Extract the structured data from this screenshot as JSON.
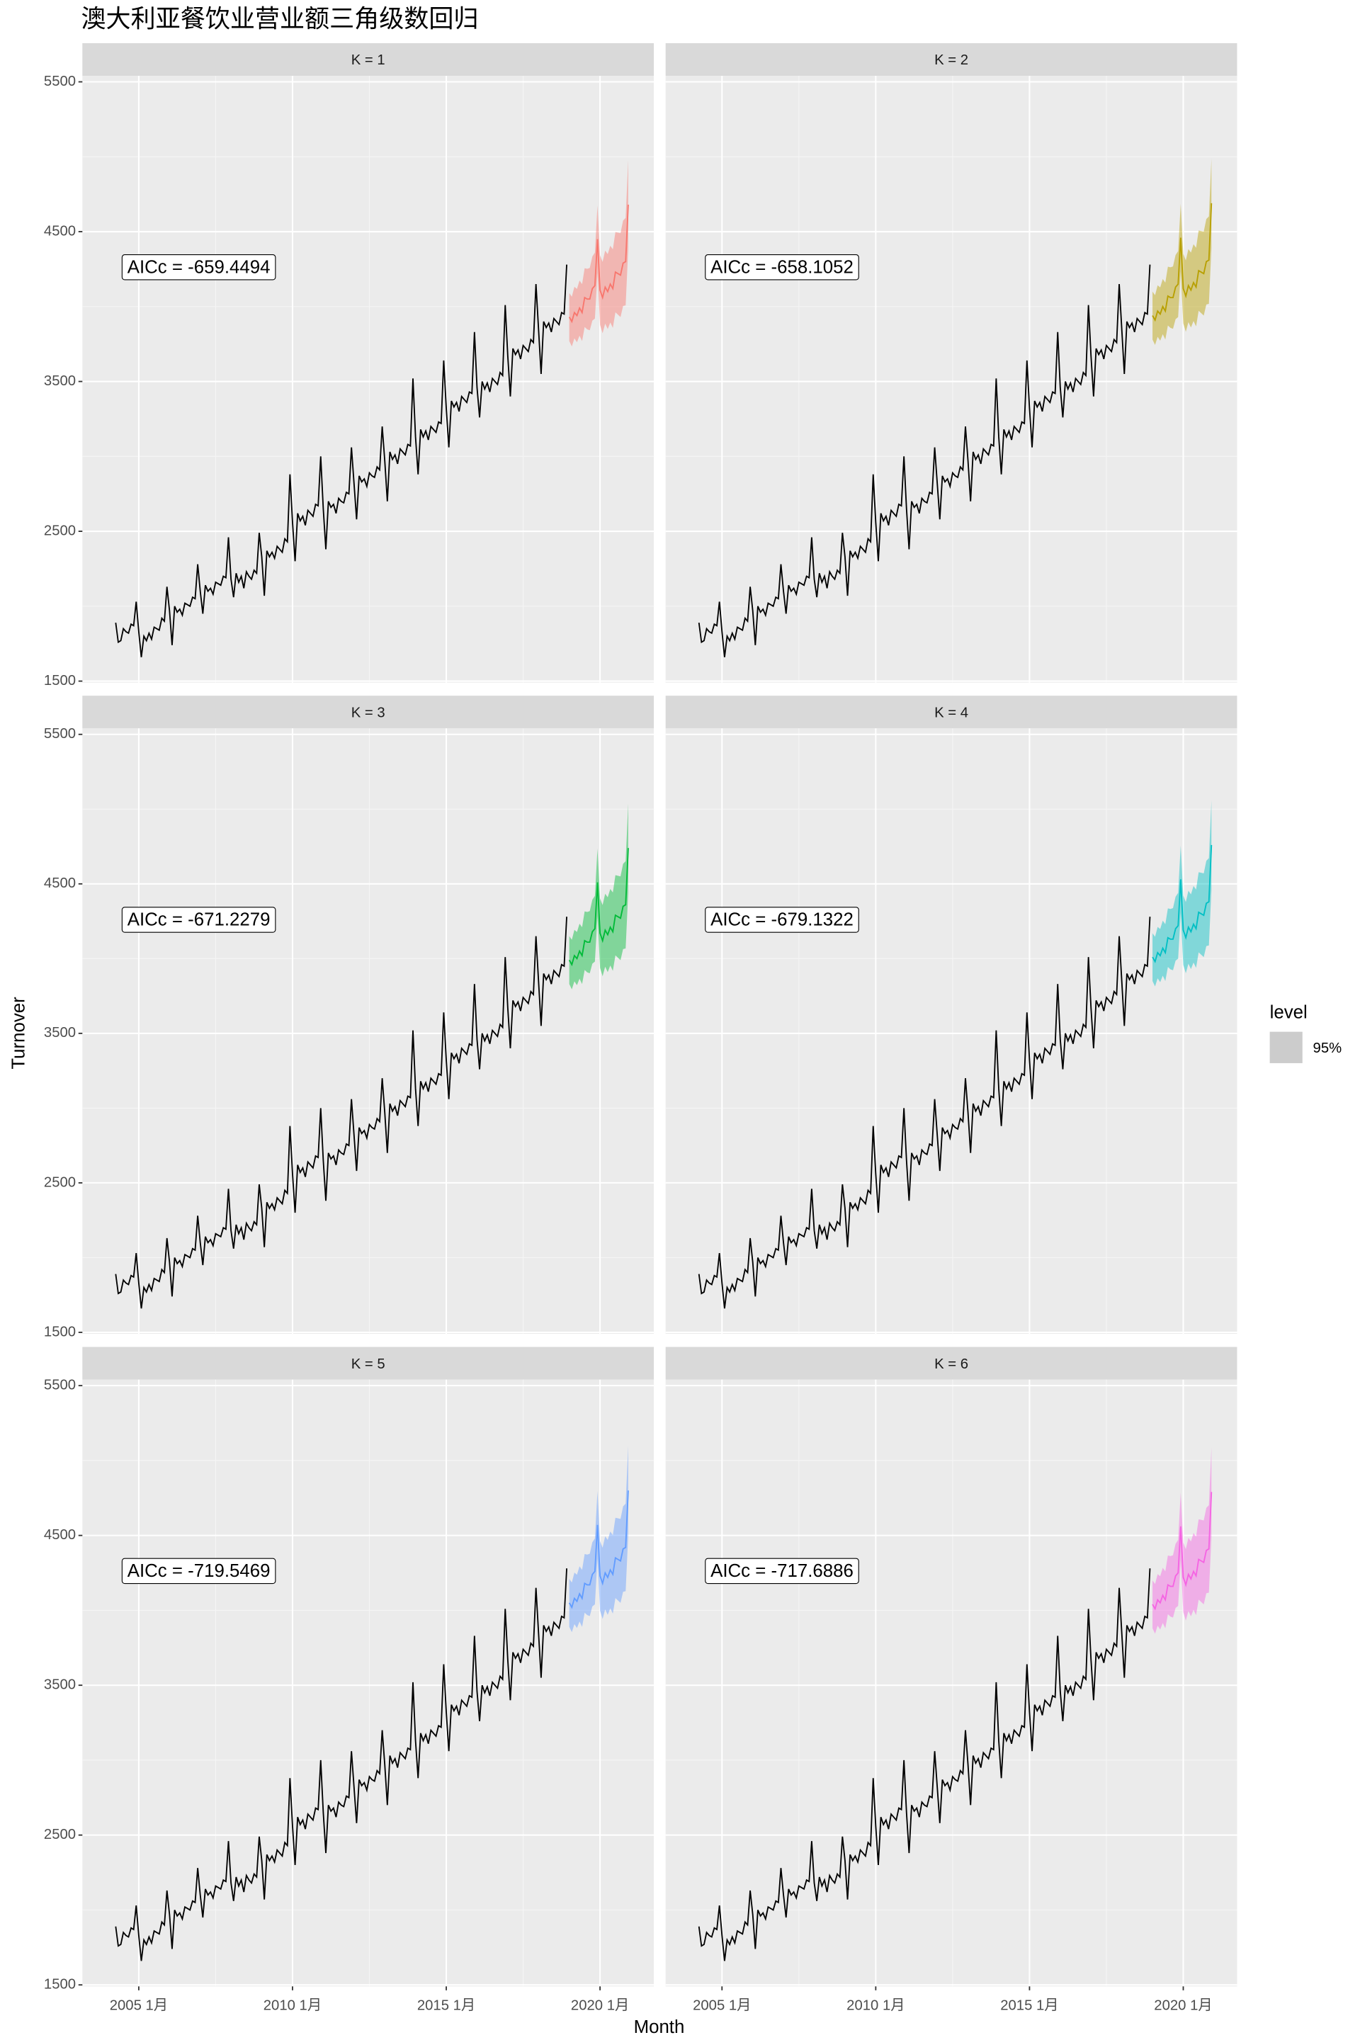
{
  "title": "澳大利亚餐饮业营业额三角级数回归",
  "chart_data": {
    "type": "line",
    "x_label": "Month",
    "y_label": "Turnover",
    "grid": true,
    "color": "#000000",
    "xlim": [
      "2003-03",
      "2021-10"
    ],
    "xticks": [
      {
        "value": "2005-01",
        "label": "2005 1月"
      },
      {
        "value": "2010-01",
        "label": "2010 1月"
      },
      {
        "value": "2015-01",
        "label": "2015 1月"
      },
      {
        "value": "2020-01",
        "label": "2020 1月"
      }
    ],
    "xminor": [
      "2007-07",
      "2012-07",
      "2017-07"
    ],
    "ylim": [
      1490,
      5540
    ],
    "yticks": [
      1500,
      2500,
      3500,
      4500,
      5500
    ],
    "yminor": [
      2000,
      3000,
      4000,
      5000
    ],
    "x": [
      "2004-04",
      "2004-05",
      "2004-06",
      "2004-07",
      "2004-08",
      "2004-09",
      "2004-10",
      "2004-11",
      "2004-12",
      "2005-01",
      "2005-02",
      "2005-03",
      "2005-04",
      "2005-05",
      "2005-06",
      "2005-07",
      "2005-08",
      "2005-09",
      "2005-10",
      "2005-11",
      "2005-12",
      "2006-01",
      "2006-02",
      "2006-03",
      "2006-04",
      "2006-05",
      "2006-06",
      "2006-07",
      "2006-08",
      "2006-09",
      "2006-10",
      "2006-11",
      "2006-12",
      "2007-01",
      "2007-02",
      "2007-03",
      "2007-04",
      "2007-05",
      "2007-06",
      "2007-07",
      "2007-08",
      "2007-09",
      "2007-10",
      "2007-11",
      "2007-12",
      "2008-01",
      "2008-02",
      "2008-03",
      "2008-04",
      "2008-05",
      "2008-06",
      "2008-07",
      "2008-08",
      "2008-09",
      "2008-10",
      "2008-11",
      "2008-12",
      "2009-01",
      "2009-02",
      "2009-03",
      "2009-04",
      "2009-05",
      "2009-06",
      "2009-07",
      "2009-08",
      "2009-09",
      "2009-10",
      "2009-11",
      "2009-12",
      "2010-01",
      "2010-02",
      "2010-03",
      "2010-04",
      "2010-05",
      "2010-06",
      "2010-07",
      "2010-08",
      "2010-09",
      "2010-10",
      "2010-11",
      "2010-12",
      "2011-01",
      "2011-02",
      "2011-03",
      "2011-04",
      "2011-05",
      "2011-06",
      "2011-07",
      "2011-08",
      "2011-09",
      "2011-10",
      "2011-11",
      "2011-12",
      "2012-01",
      "2012-02",
      "2012-03",
      "2012-04",
      "2012-05",
      "2012-06",
      "2012-07",
      "2012-08",
      "2012-09",
      "2012-10",
      "2012-11",
      "2012-12",
      "2013-01",
      "2013-02",
      "2013-03",
      "2013-04",
      "2013-05",
      "2013-06",
      "2013-07",
      "2013-08",
      "2013-09",
      "2013-10",
      "2013-11",
      "2013-12",
      "2014-01",
      "2014-02",
      "2014-03",
      "2014-04",
      "2014-05",
      "2014-06",
      "2014-07",
      "2014-08",
      "2014-09",
      "2014-10",
      "2014-11",
      "2014-12",
      "2015-01",
      "2015-02",
      "2015-03",
      "2015-04",
      "2015-05",
      "2015-06",
      "2015-07",
      "2015-08",
      "2015-09",
      "2015-10",
      "2015-11",
      "2015-12",
      "2016-01",
      "2016-02",
      "2016-03",
      "2016-04",
      "2016-05",
      "2016-06",
      "2016-07",
      "2016-08",
      "2016-09",
      "2016-10",
      "2016-11",
      "2016-12",
      "2017-01",
      "2017-02",
      "2017-03",
      "2017-04",
      "2017-05",
      "2017-06",
      "2017-07",
      "2017-08",
      "2017-09",
      "2017-10",
      "2017-11",
      "2017-12",
      "2018-01",
      "2018-02",
      "2018-03",
      "2018-04",
      "2018-05",
      "2018-06",
      "2018-07",
      "2018-08",
      "2018-09",
      "2018-10",
      "2018-11",
      "2018-12"
    ],
    "values": [
      1890,
      1760,
      1770,
      1850,
      1830,
      1820,
      1880,
      1870,
      2030,
      1830,
      1660,
      1800,
      1770,
      1820,
      1780,
      1860,
      1850,
      1840,
      1920,
      1900,
      2130,
      1970,
      1740,
      2000,
      1960,
      1980,
      1940,
      2020,
      2010,
      2000,
      2060,
      2050,
      2280,
      2100,
      1950,
      2140,
      2100,
      2120,
      2080,
      2160,
      2150,
      2140,
      2200,
      2190,
      2460,
      2180,
      2060,
      2220,
      2160,
      2200,
      2120,
      2230,
      2200,
      2180,
      2240,
      2220,
      2490,
      2330,
      2070,
      2370,
      2330,
      2360,
      2320,
      2400,
      2380,
      2360,
      2450,
      2430,
      2880,
      2560,
      2300,
      2620,
      2570,
      2600,
      2540,
      2640,
      2620,
      2600,
      2680,
      2670,
      3000,
      2650,
      2380,
      2700,
      2660,
      2680,
      2620,
      2720,
      2700,
      2690,
      2760,
      2750,
      3060,
      2820,
      2580,
      2870,
      2830,
      2850,
      2800,
      2890,
      2870,
      2860,
      2930,
      2910,
      3200,
      2970,
      2700,
      3030,
      2980,
      3010,
      2950,
      3050,
      3030,
      3010,
      3080,
      3070,
      3520,
      3130,
      2880,
      3180,
      3130,
      3170,
      3110,
      3200,
      3180,
      3160,
      3230,
      3220,
      3640,
      3320,
      3060,
      3370,
      3330,
      3360,
      3300,
      3400,
      3380,
      3360,
      3430,
      3420,
      3830,
      3460,
      3260,
      3500,
      3450,
      3490,
      3430,
      3520,
      3500,
      3480,
      3560,
      3540,
      4010,
      3670,
      3400,
      3720,
      3680,
      3710,
      3650,
      3740,
      3720,
      3700,
      3780,
      3760,
      4150,
      3850,
      3550,
      3900,
      3860,
      3890,
      3830,
      3920,
      3900,
      3880,
      3960,
      3950,
      4280
    ],
    "forecast_x": [
      "2019-01",
      "2019-02",
      "2019-03",
      "2019-04",
      "2019-05",
      "2019-06",
      "2019-07",
      "2019-08",
      "2019-09",
      "2019-10",
      "2019-11",
      "2019-12",
      "2020-01",
      "2020-02",
      "2020-03",
      "2020-04",
      "2020-05",
      "2020-06",
      "2020-07",
      "2020-08",
      "2020-09",
      "2020-10",
      "2020-11",
      "2020-12"
    ],
    "facets": [
      {
        "label": "K = 1",
        "annotation": "AICc = -659.4494",
        "color": "#F8766D",
        "mean": [
          3930,
          3900,
          3960,
          3940,
          3990,
          3960,
          4060,
          4050,
          4050,
          4120,
          4140,
          4450,
          4110,
          4060,
          4130,
          4100,
          4150,
          4120,
          4230,
          4220,
          4210,
          4290,
          4300,
          4680
        ],
        "lower": [
          3770,
          3734,
          3788,
          3762,
          3806,
          3770,
          3864,
          3848,
          3842,
          3906,
          3920,
          4224,
          3878,
          3822,
          3886,
          3850,
          3894,
          3858,
          3962,
          3946,
          3930,
          4004,
          4008,
          4382
        ],
        "upper": [
          4090,
          4066,
          4132,
          4118,
          4174,
          4150,
          4256,
          4252,
          4258,
          4334,
          4360,
          4676,
          4342,
          4298,
          4374,
          4350,
          4406,
          4382,
          4498,
          4494,
          4490,
          4574,
          4592,
          4978
        ]
      },
      {
        "label": "K = 2",
        "annotation": "AICc = -658.1052",
        "color": "#B79F00",
        "mean": [
          3940,
          3910,
          3970,
          3950,
          4000,
          3970,
          4070,
          4060,
          4060,
          4130,
          4150,
          4460,
          4120,
          4070,
          4140,
          4110,
          4160,
          4130,
          4240,
          4230,
          4220,
          4300,
          4310,
          4690
        ],
        "lower": [
          3780,
          3744,
          3798,
          3772,
          3816,
          3780,
          3874,
          3858,
          3852,
          3916,
          3930,
          4234,
          3888,
          3832,
          3896,
          3860,
          3904,
          3868,
          3972,
          3956,
          3940,
          4014,
          4018,
          4392
        ],
        "upper": [
          4100,
          4076,
          4142,
          4128,
          4184,
          4160,
          4266,
          4262,
          4268,
          4344,
          4370,
          4686,
          4352,
          4308,
          4384,
          4360,
          4416,
          4392,
          4508,
          4504,
          4500,
          4584,
          4602,
          4988
        ]
      },
      {
        "label": "K = 3",
        "annotation": "AICc = -671.2279",
        "color": "#00BA38",
        "mean": [
          3990,
          3960,
          4020,
          4000,
          4050,
          4020,
          4120,
          4110,
          4110,
          4180,
          4200,
          4510,
          4170,
          4120,
          4190,
          4160,
          4210,
          4180,
          4290,
          4280,
          4270,
          4350,
          4360,
          4740
        ],
        "lower": [
          3830,
          3794,
          3848,
          3822,
          3866,
          3830,
          3924,
          3908,
          3902,
          3966,
          3980,
          4284,
          3938,
          3882,
          3946,
          3910,
          3954,
          3918,
          4022,
          4006,
          3990,
          4064,
          4068,
          4442
        ],
        "upper": [
          4150,
          4126,
          4192,
          4178,
          4234,
          4210,
          4316,
          4312,
          4318,
          4394,
          4420,
          4736,
          4402,
          4358,
          4434,
          4410,
          4466,
          4442,
          4558,
          4554,
          4550,
          4634,
          4652,
          5038
        ]
      },
      {
        "label": "K = 4",
        "annotation": "AICc = -679.1322",
        "color": "#00BFC4",
        "mean": [
          4010,
          3980,
          4040,
          4020,
          4070,
          4040,
          4140,
          4130,
          4130,
          4200,
          4220,
          4530,
          4190,
          4140,
          4210,
          4180,
          4230,
          4200,
          4310,
          4300,
          4290,
          4370,
          4380,
          4760
        ],
        "lower": [
          3850,
          3814,
          3868,
          3842,
          3886,
          3850,
          3944,
          3928,
          3922,
          3986,
          4000,
          4304,
          3958,
          3902,
          3966,
          3930,
          3974,
          3938,
          4042,
          4026,
          4010,
          4084,
          4088,
          4462
        ],
        "upper": [
          4170,
          4146,
          4212,
          4198,
          4254,
          4230,
          4336,
          4332,
          4338,
          4414,
          4440,
          4756,
          4422,
          4378,
          4454,
          4430,
          4486,
          4462,
          4578,
          4574,
          4570,
          4654,
          4672,
          5058
        ]
      },
      {
        "label": "K = 5",
        "annotation": "AICc = -719.5469",
        "color": "#619CFF",
        "mean": [
          4050,
          4020,
          4080,
          4060,
          4110,
          4080,
          4180,
          4170,
          4170,
          4240,
          4260,
          4570,
          4230,
          4180,
          4250,
          4220,
          4270,
          4240,
          4350,
          4340,
          4330,
          4410,
          4420,
          4800
        ],
        "lower": [
          3890,
          3854,
          3908,
          3882,
          3926,
          3890,
          3984,
          3968,
          3962,
          4026,
          4040,
          4344,
          3998,
          3942,
          4006,
          3970,
          4014,
          3978,
          4082,
          4066,
          4050,
          4124,
          4128,
          4502
        ],
        "upper": [
          4210,
          4186,
          4252,
          4238,
          4294,
          4270,
          4376,
          4372,
          4378,
          4454,
          4480,
          4796,
          4462,
          4418,
          4494,
          4470,
          4526,
          4502,
          4618,
          4614,
          4610,
          4694,
          4712,
          5098
        ]
      },
      {
        "label": "K = 6",
        "annotation": "AICc = -717.6886",
        "color": "#F564E3",
        "mean": [
          4040,
          4010,
          4070,
          4050,
          4100,
          4070,
          4170,
          4160,
          4160,
          4230,
          4250,
          4560,
          4220,
          4170,
          4240,
          4210,
          4260,
          4230,
          4340,
          4330,
          4320,
          4400,
          4410,
          4790
        ],
        "lower": [
          3880,
          3844,
          3898,
          3872,
          3916,
          3880,
          3974,
          3958,
          3952,
          4016,
          4030,
          4334,
          3988,
          3932,
          3996,
          3960,
          4004,
          3968,
          4072,
          4056,
          4040,
          4114,
          4118,
          4492
        ],
        "upper": [
          4200,
          4176,
          4242,
          4228,
          4284,
          4260,
          4366,
          4362,
          4368,
          4444,
          4470,
          4786,
          4452,
          4408,
          4484,
          4460,
          4516,
          4492,
          4608,
          4604,
          4600,
          4684,
          4702,
          5088
        ]
      }
    ],
    "legend": {
      "title": "level",
      "labels": [
        "95%"
      ],
      "color": "#CCCCCC"
    }
  }
}
